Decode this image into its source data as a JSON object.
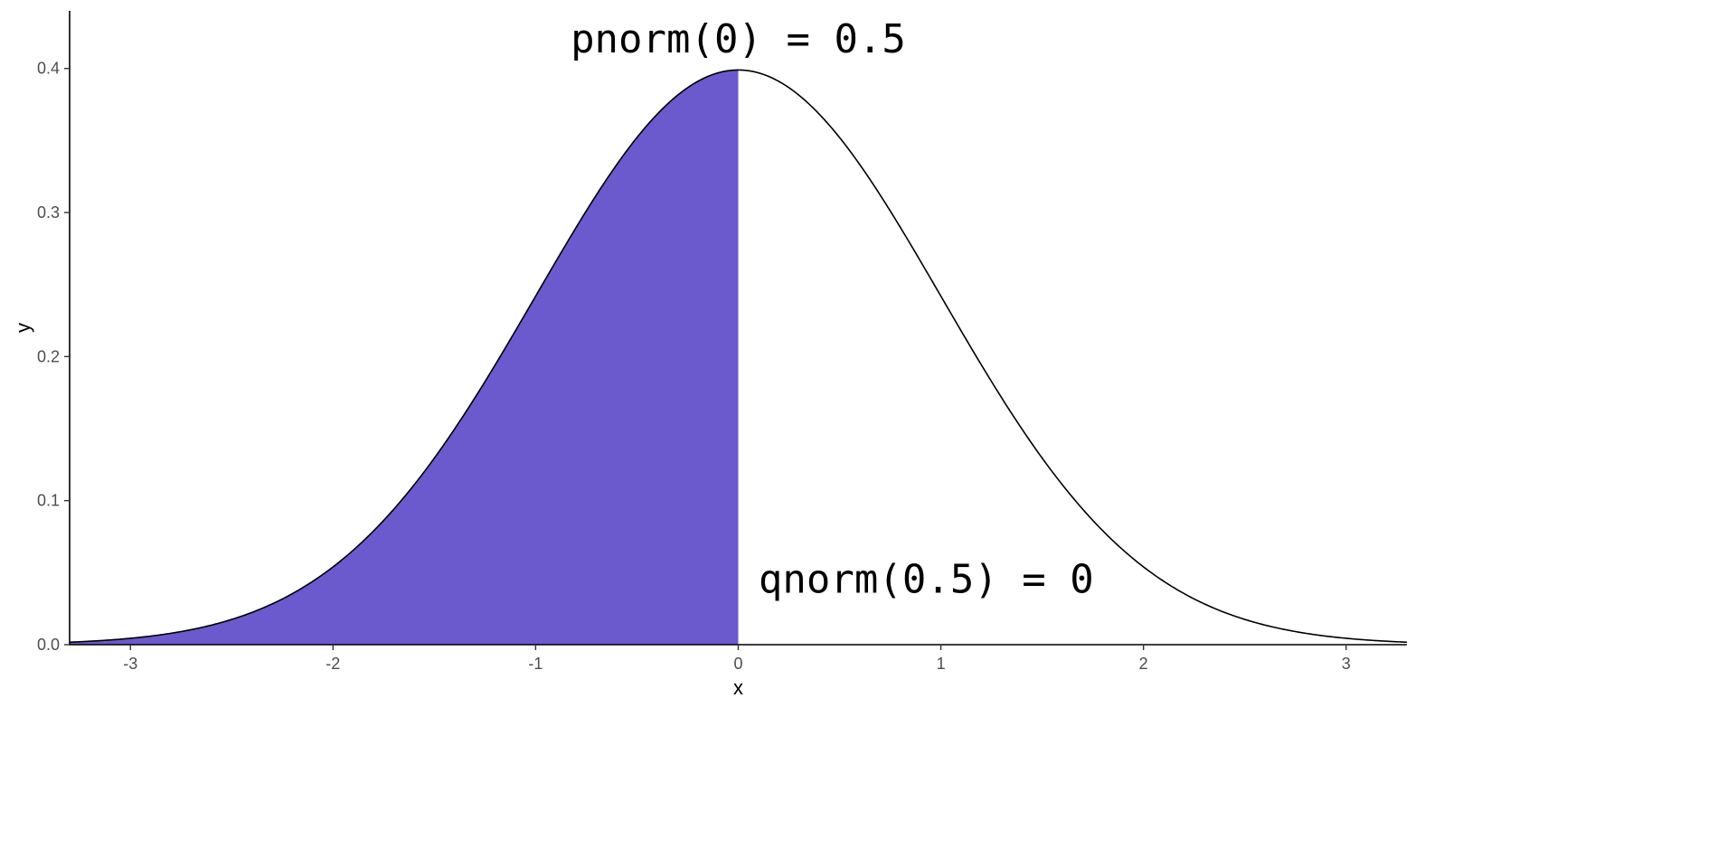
{
  "chart_data": {
    "type": "area",
    "distribution": "standard normal density",
    "xlabel": "x",
    "ylabel": "y",
    "xlim": [
      -3.3,
      3.3
    ],
    "ylim": [
      0,
      0.44
    ],
    "x_ticks": [
      -3,
      -2,
      -1,
      0,
      1,
      2,
      3
    ],
    "y_ticks": [
      0.0,
      0.1,
      0.2,
      0.3,
      0.4
    ],
    "x_tick_labels": [
      "-3",
      "-2",
      "-1",
      "0",
      "1",
      "2",
      "3"
    ],
    "y_tick_labels": [
      "0.0",
      "0.1",
      "0.2",
      "0.3",
      "0.4"
    ],
    "shaded_region": {
      "from": -3.3,
      "to": 0,
      "color": "#6a5acd"
    },
    "curve_color": "#000000",
    "grid": false,
    "annotations": [
      {
        "text": "pnorm(0) = 0.5",
        "x": 0,
        "y": 0.42,
        "anchor": "middle"
      },
      {
        "text": "qnorm(0.5) = 0",
        "x": 0.1,
        "y": 0.045,
        "anchor": "start"
      }
    ],
    "curve_points": [
      {
        "x": -3.25,
        "y": 0.002
      },
      {
        "x": -3.0,
        "y": 0.0044
      },
      {
        "x": -2.5,
        "y": 0.0175
      },
      {
        "x": -2.0,
        "y": 0.054
      },
      {
        "x": -1.5,
        "y": 0.1295
      },
      {
        "x": -1.0,
        "y": 0.242
      },
      {
        "x": -0.5,
        "y": 0.3521
      },
      {
        "x": 0.0,
        "y": 0.3989
      },
      {
        "x": 0.5,
        "y": 0.3521
      },
      {
        "x": 1.0,
        "y": 0.242
      },
      {
        "x": 1.5,
        "y": 0.1295
      },
      {
        "x": 2.0,
        "y": 0.054
      },
      {
        "x": 2.5,
        "y": 0.0175
      },
      {
        "x": 3.0,
        "y": 0.0044
      },
      {
        "x": 3.25,
        "y": 0.002
      }
    ]
  }
}
